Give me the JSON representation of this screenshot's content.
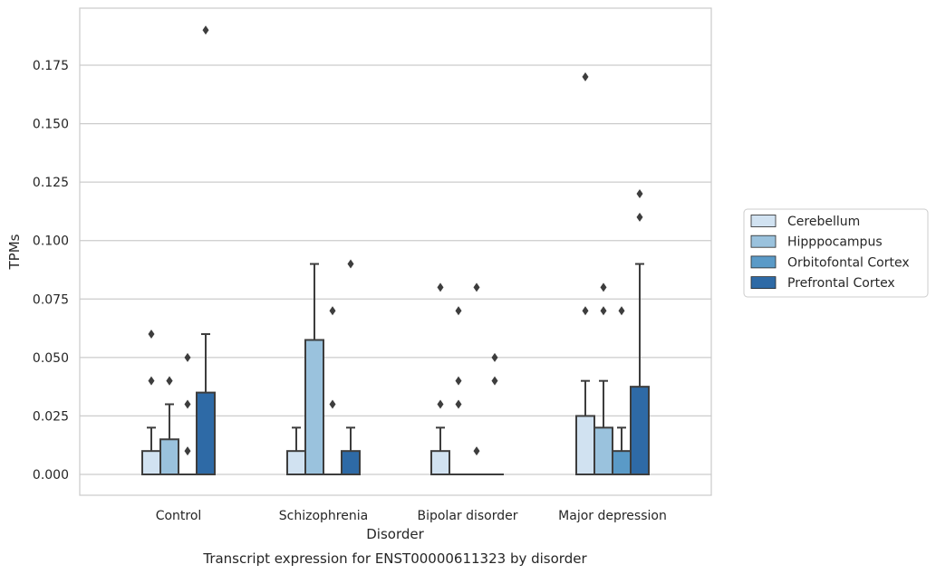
{
  "chart_data": {
    "type": "box",
    "xlabel": "Disorder",
    "ylabel": "TPMs",
    "caption": "Transcript expression for ENST00000611323 by disorder",
    "ylim": [
      -0.0095,
      0.1995
    ],
    "yticks": [
      "0.000",
      "0.025",
      "0.050",
      "0.075",
      "0.100",
      "0.125",
      "0.150",
      "0.175"
    ],
    "grid": true,
    "legend_position": "right",
    "categories": [
      "Control",
      "Schizophrenia",
      "Bipolar disorder",
      "Major depression"
    ],
    "series": [
      {
        "name": "Cerebellum",
        "color": "#d1e2f1",
        "boxes": [
          {
            "q1": 0.0,
            "median": 0.0,
            "q3": 0.01,
            "whislo": 0.0,
            "whishi": 0.02,
            "fliers": [
              0.04,
              0.06
            ]
          },
          {
            "q1": 0.0,
            "median": 0.0,
            "q3": 0.01,
            "whislo": 0.0,
            "whishi": 0.02,
            "fliers": []
          },
          {
            "q1": 0.0,
            "median": 0.0,
            "q3": 0.01,
            "whislo": 0.0,
            "whishi": 0.02,
            "fliers": [
              0.03,
              0.08
            ]
          },
          {
            "q1": 0.0,
            "median": 0.0,
            "q3": 0.025,
            "whislo": 0.0,
            "whishi": 0.04,
            "fliers": [
              0.07,
              0.17
            ]
          }
        ]
      },
      {
        "name": "Hipppocampus",
        "color": "#9ac2dd",
        "boxes": [
          {
            "q1": 0.0,
            "median": 0.0,
            "q3": 0.015,
            "whislo": 0.0,
            "whishi": 0.03,
            "fliers": [
              0.04,
              0.04
            ]
          },
          {
            "q1": 0.0,
            "median": 0.0,
            "q3": 0.0575,
            "whislo": 0.0,
            "whishi": 0.09,
            "fliers": []
          },
          {
            "q1": 0.0,
            "median": 0.0,
            "q3": 0.0,
            "whislo": 0.0,
            "whishi": 0.0,
            "fliers": [
              0.03,
              0.04,
              0.07
            ]
          },
          {
            "q1": 0.0,
            "median": 0.0,
            "q3": 0.02,
            "whislo": 0.0,
            "whishi": 0.04,
            "fliers": [
              0.07,
              0.08
            ]
          }
        ]
      },
      {
        "name": "Orbitofontal Cortex",
        "color": "#5a9ac7",
        "boxes": [
          {
            "q1": 0.0,
            "median": 0.0,
            "q3": 0.0,
            "whislo": 0.0,
            "whishi": 0.0,
            "fliers": [
              0.01,
              0.03,
              0.05
            ]
          },
          {
            "q1": 0.0,
            "median": 0.0,
            "q3": 0.0,
            "whislo": 0.0,
            "whishi": 0.0,
            "fliers": [
              0.03,
              0.07
            ]
          },
          {
            "q1": 0.0,
            "median": 0.0,
            "q3": 0.0,
            "whislo": 0.0,
            "whishi": 0.0,
            "fliers": [
              0.01,
              0.08
            ]
          },
          {
            "q1": 0.0,
            "median": 0.0,
            "q3": 0.01,
            "whislo": 0.0,
            "whishi": 0.02,
            "fliers": [
              0.07
            ]
          }
        ]
      },
      {
        "name": "Prefrontal Cortex",
        "color": "#2e6aa6",
        "boxes": [
          {
            "q1": 0.0,
            "median": 0.0,
            "q3": 0.035,
            "whislo": 0.0,
            "whishi": 0.06,
            "fliers": [
              0.19
            ]
          },
          {
            "q1": 0.0,
            "median": 0.0,
            "q3": 0.01,
            "whislo": 0.0,
            "whishi": 0.02,
            "fliers": [
              0.09
            ]
          },
          {
            "q1": 0.0,
            "median": 0.0,
            "q3": 0.0,
            "whislo": 0.0,
            "whishi": 0.0,
            "fliers": [
              0.04,
              0.05
            ]
          },
          {
            "q1": 0.0,
            "median": 0.0,
            "q3": 0.0375,
            "whislo": 0.0,
            "whishi": 0.09,
            "fliers": [
              0.11,
              0.12
            ]
          }
        ]
      }
    ]
  }
}
